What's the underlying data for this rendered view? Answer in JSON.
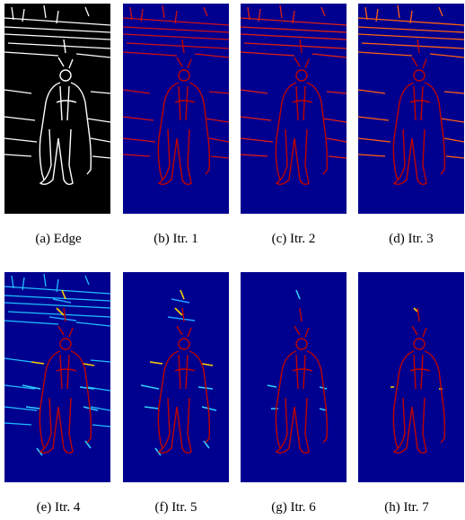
{
  "panels": [
    {
      "caption": "(a) Edge"
    },
    {
      "caption": "(b) Itr. 1"
    },
    {
      "caption": "(c) Itr. 2"
    },
    {
      "caption": "(d) Itr. 3"
    },
    {
      "caption": "(e) Itr. 4"
    },
    {
      "caption": "(f) Itr. 5"
    },
    {
      "caption": "(g) Itr. 6"
    },
    {
      "caption": "(h) Itr. 7"
    }
  ]
}
